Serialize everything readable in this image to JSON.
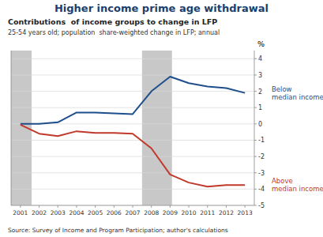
{
  "chart_data": {
    "type": "line",
    "title": "Higher income prime age withdrawal",
    "subtitle": "Contributions  of income groups to change in LFP",
    "subtitle2": "25-54 years old; population  share-weighted change in LFP; annual",
    "source": "Source: Survey of Income and Program Participation; author's calculations",
    "ylabel": "%",
    "x": [
      2001,
      2002,
      2003,
      2004,
      2005,
      2006,
      2007,
      2008,
      2009,
      2010,
      2011,
      2012,
      2013
    ],
    "series": [
      {
        "name": "Below\nmedian income",
        "color": "#1f4e8c",
        "values": [
          0.0,
          0.0,
          0.1,
          0.7,
          0.7,
          0.65,
          0.6,
          2.0,
          2.9,
          2.5,
          2.3,
          2.2,
          1.9
        ]
      },
      {
        "name": "Above\nmedian income",
        "color": "#c0392b",
        "values": [
          -0.05,
          -0.6,
          -0.75,
          -0.45,
          -0.55,
          -0.55,
          -0.6,
          -1.5,
          -3.1,
          -3.6,
          -3.85,
          -3.75,
          -3.75
        ]
      }
    ],
    "bands": [
      {
        "start": 2000.5,
        "end": 2001.6,
        "color": "#c8c8c8"
      },
      {
        "start": 2007.5,
        "end": 2009.1,
        "color": "#c8c8c8"
      }
    ],
    "xlim": [
      2000.5,
      2013.5
    ],
    "xticks": [
      2001,
      2002,
      2003,
      2004,
      2005,
      2006,
      2007,
      2008,
      2009,
      2010,
      2011,
      2012,
      2013
    ],
    "ylim": [
      -5,
      4.5
    ],
    "yticks": [
      -5,
      -4,
      -3,
      -2,
      -1,
      0,
      1,
      2,
      3,
      4
    ],
    "grid": true
  }
}
